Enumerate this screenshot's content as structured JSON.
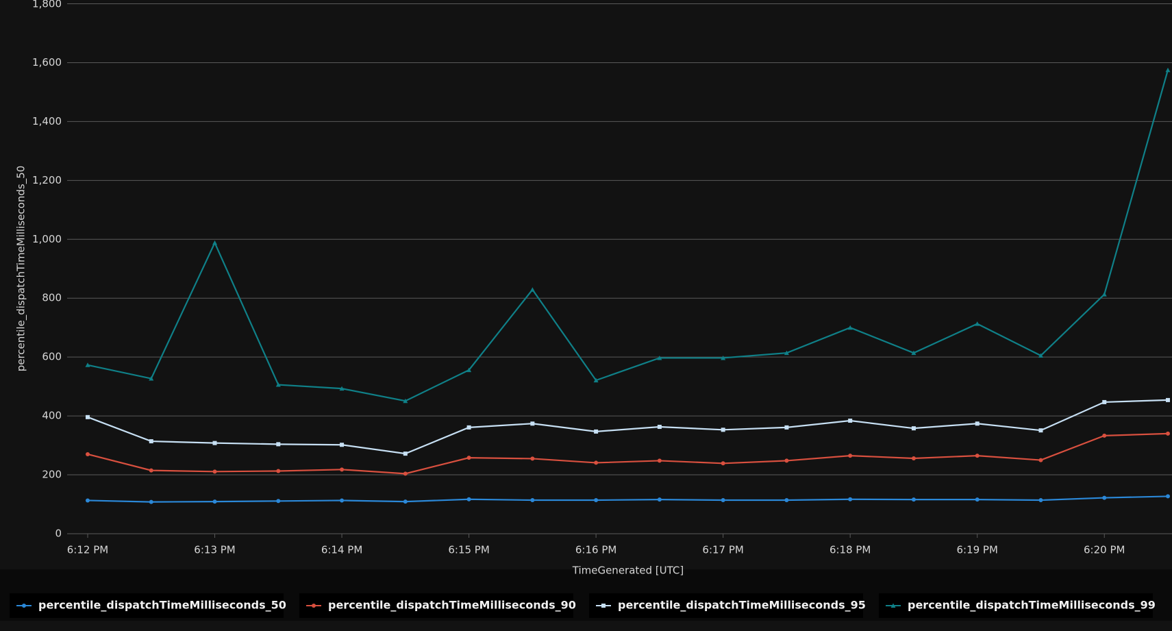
{
  "chart_data": {
    "type": "line",
    "x_label": "TimeGenerated [UTC]",
    "y_label": "percentile_dispatchTimeMilliseconds_50",
    "categories": [
      "6:12 PM",
      null,
      "6:13 PM",
      null,
      "6:14 PM",
      null,
      "6:15 PM",
      null,
      "6:16 PM",
      null,
      "6:17 PM",
      null,
      "6:18 PM",
      null,
      "6:19 PM",
      null,
      "6:20 PM",
      null
    ],
    "ylim": [
      0,
      1800
    ],
    "yticks": [
      0,
      200,
      400,
      600,
      800,
      {
        "value": 1000,
        "label": "1,000"
      },
      {
        "value": 1200,
        "label": "1,200"
      },
      {
        "value": 1400,
        "label": "1,400"
      },
      {
        "value": 1600,
        "label": "1,600"
      },
      {
        "value": 1800,
        "label": "1,800"
      }
    ],
    "grid": true,
    "legend": "bottom",
    "series": [
      {
        "name": "percentile_dispatchTimeMilliseconds_50",
        "color": "#2b88d8",
        "marker": "circle",
        "values": [
          113,
          108,
          109,
          111,
          113,
          109,
          117,
          114,
          114,
          116,
          114,
          114,
          117,
          116,
          116,
          114,
          122,
          127
        ]
      },
      {
        "name": "percentile_dispatchTimeMilliseconds_90",
        "color": "#d9503f",
        "marker": "circle",
        "values": [
          270,
          215,
          211,
          213,
          218,
          204,
          258,
          255,
          241,
          248,
          239,
          248,
          265,
          256,
          265,
          250,
          333,
          340
        ]
      },
      {
        "name": "percentile_dispatchTimeMilliseconds_95",
        "color": "#c7e0f4",
        "marker": "square",
        "values": [
          396,
          314,
          308,
          304,
          302,
          272,
          361,
          374,
          347,
          363,
          353,
          361,
          384,
          358,
          374,
          351,
          447,
          454
        ]
      },
      {
        "name": "percentile_dispatchTimeMilliseconds_99",
        "color": "#0f8088",
        "marker": "triangle",
        "values": [
          573,
          527,
          988,
          506,
          493,
          451,
          556,
          829,
          521,
          597,
          597,
          614,
          700,
          614,
          713,
          605,
          813,
          1575
        ]
      }
    ]
  }
}
